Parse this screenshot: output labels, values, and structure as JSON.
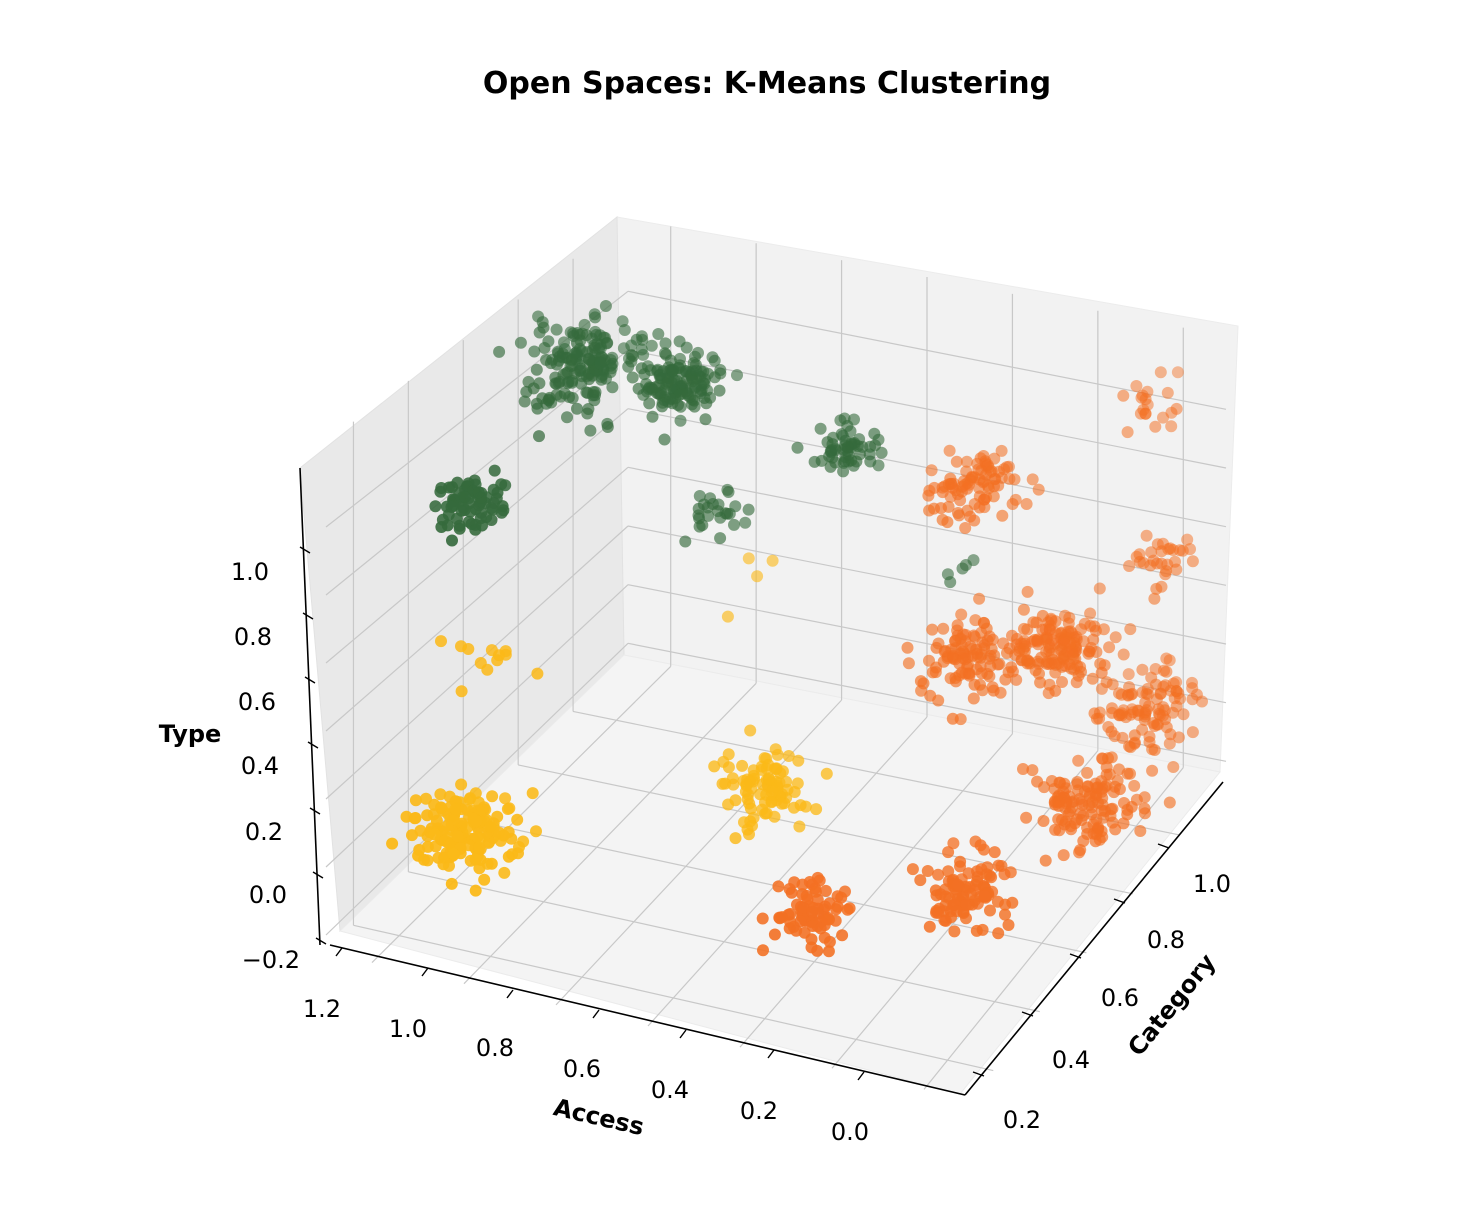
{
  "chart_data": {
    "type": "scatter",
    "projection": "3d",
    "title": "Open Spaces: K-Means Clustering",
    "xlabel": "Access",
    "ylabel": "Category",
    "zlabel": "Type",
    "x_ticks": [
      "1.2",
      "1.0",
      "0.8",
      "0.6",
      "0.4",
      "0.2",
      "0.0"
    ],
    "y_ticks": [
      "0.2",
      "0.4",
      "0.6",
      "0.8",
      "1.0"
    ],
    "z_ticks": [
      "−0.2",
      "0.0",
      "0.2",
      "0.4",
      "0.6",
      "0.8",
      "1.0"
    ],
    "grid": true,
    "series": [
      {
        "color": "#356a3c",
        "clusters": [
          {
            "x": 1.1,
            "y": 0.3,
            "z": 1.0,
            "n": 70,
            "spread": 0.035
          },
          {
            "x": 1.0,
            "y": 0.9,
            "z": 1.0,
            "n": 130,
            "spread": 0.04
          },
          {
            "x": 0.9,
            "y": 0.9,
            "z": 0.6,
            "n": 25,
            "spread": 0.03
          },
          {
            "x": 0.6,
            "y": 0.9,
            "z": 0.9,
            "n": 55,
            "spread": 0.035
          },
          {
            "x": 0.4,
            "y": 1.0,
            "z": 0.5,
            "n": 5,
            "spread": 0.025
          },
          {
            "x": 1.2,
            "y": 0.9,
            "z": 1.0,
            "n": 180,
            "spread": 0.06
          }
        ]
      },
      {
        "color": "#fbb918",
        "clusters": [
          {
            "x": 1.05,
            "y": 0.2,
            "z": 0.1,
            "n": 160,
            "spread": 0.05
          },
          {
            "x": 0.6,
            "y": 0.55,
            "z": 0.1,
            "n": 90,
            "spread": 0.045
          },
          {
            "x": 1.1,
            "y": 0.35,
            "z": 0.5,
            "n": 12,
            "spread": 0.03
          },
          {
            "x": 0.85,
            "y": 0.9,
            "z": 0.4,
            "n": 4,
            "spread": 0.03
          }
        ]
      },
      {
        "color": "#f37023",
        "clusters": [
          {
            "x": 0.35,
            "y": 0.3,
            "z": 0.0,
            "n": 75,
            "spread": 0.035
          },
          {
            "x": 0.1,
            "y": 0.45,
            "z": 0.0,
            "n": 100,
            "spread": 0.045
          },
          {
            "x": 0.0,
            "y": 0.8,
            "z": 0.0,
            "n": 130,
            "spread": 0.05
          },
          {
            "x": 0.0,
            "y": 1.05,
            "z": 0.1,
            "n": 100,
            "spread": 0.05
          },
          {
            "x": 0.15,
            "y": 0.95,
            "z": 0.35,
            "n": 140,
            "spread": 0.05
          },
          {
            "x": 0.3,
            "y": 0.85,
            "z": 0.35,
            "n": 110,
            "spread": 0.05
          },
          {
            "x": 0.35,
            "y": 0.95,
            "z": 0.8,
            "n": 90,
            "spread": 0.045
          },
          {
            "x": 0.0,
            "y": 1.1,
            "z": 0.55,
            "n": 30,
            "spread": 0.035
          },
          {
            "x": 0.05,
            "y": 1.15,
            "z": 1.0,
            "n": 20,
            "spread": 0.04
          }
        ]
      }
    ]
  }
}
